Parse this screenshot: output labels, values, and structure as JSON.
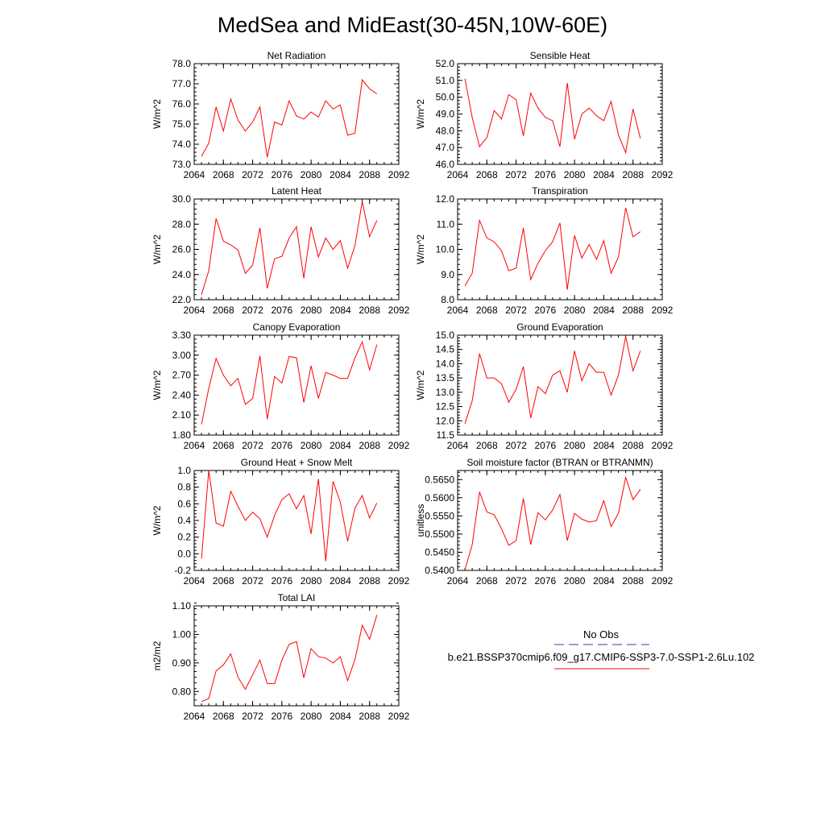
{
  "title": "MedSea and MidEast(30-45N,10W-60E)",
  "legend": {
    "obs_label": "No Obs",
    "case_label": "b.e21.BSSP370cmip6.f09_g17.CMIP6-SSP3-7.0-SSP1-2.6Lu.102",
    "obs_color": "#3a3aa8",
    "case_color": "#ff0000"
  },
  "x_values": [
    2065,
    2066,
    2067,
    2068,
    2069,
    2070,
    2071,
    2072,
    2073,
    2074,
    2075,
    2076,
    2077,
    2078,
    2079,
    2080,
    2081,
    2082,
    2083,
    2084,
    2085,
    2086,
    2087,
    2088,
    2089
  ],
  "chart_data": [
    {
      "type": "line",
      "title": "Net Radiation",
      "ylabel": "W/m^2",
      "xlim": [
        2064,
        2092
      ],
      "ylim": [
        73.0,
        78.0
      ],
      "xticks": [
        "2064",
        "2068",
        "2072",
        "2076",
        "2080",
        "2084",
        "2088",
        "2092"
      ],
      "yticks": [
        "73.0",
        "74.0",
        "75.0",
        "76.0",
        "77.0",
        "78.0"
      ],
      "yminor": 0.2,
      "series": [
        {
          "color": "#ff0000",
          "values": [
            73.4,
            74.05,
            75.85,
            74.65,
            76.25,
            75.2,
            74.65,
            75.1,
            75.85,
            73.35,
            75.1,
            74.95,
            76.15,
            75.4,
            75.25,
            75.6,
            75.35,
            76.15,
            75.75,
            75.95,
            74.45,
            74.55,
            77.2,
            76.75,
            76.5
          ]
        }
      ]
    },
    {
      "type": "line",
      "title": "Sensible Heat",
      "ylabel": "W/m^2",
      "xlim": [
        2064,
        2092
      ],
      "ylim": [
        46.0,
        52.0
      ],
      "xticks": [
        "2064",
        "2068",
        "2072",
        "2076",
        "2080",
        "2084",
        "2088",
        "2092"
      ],
      "yticks": [
        "46.0",
        "47.0",
        "48.0",
        "49.0",
        "50.0",
        "51.0",
        "52.0"
      ],
      "yminor": 0.2,
      "series": [
        {
          "color": "#ff0000",
          "values": [
            51.1,
            48.8,
            47.05,
            47.6,
            49.2,
            48.7,
            50.15,
            49.85,
            47.7,
            50.25,
            49.35,
            48.8,
            48.6,
            47.05,
            50.85,
            47.5,
            49.0,
            49.35,
            48.9,
            48.6,
            49.75,
            47.75,
            46.7,
            49.3,
            47.55
          ]
        }
      ]
    },
    {
      "type": "line",
      "title": "Latent Heat",
      "ylabel": "W/m^2",
      "xlim": [
        2064,
        2092
      ],
      "ylim": [
        22.0,
        30.0
      ],
      "xticks": [
        "2064",
        "2068",
        "2072",
        "2076",
        "2080",
        "2084",
        "2088",
        "2092"
      ],
      "yticks": [
        "22.0",
        "24.0",
        "26.0",
        "28.0",
        "30.0"
      ],
      "yminor": 0.4,
      "series": [
        {
          "color": "#ff0000",
          "values": [
            22.4,
            24.3,
            28.45,
            26.65,
            26.35,
            25.95,
            24.1,
            24.75,
            27.7,
            22.9,
            25.25,
            25.45,
            26.9,
            27.8,
            23.7,
            27.8,
            25.4,
            26.9,
            26.0,
            26.7,
            24.5,
            26.3,
            29.8,
            27.0,
            28.3
          ]
        }
      ]
    },
    {
      "type": "line",
      "title": "Transpiration",
      "ylabel": "W/m^2",
      "xlim": [
        2064,
        2092
      ],
      "ylim": [
        8.0,
        12.0
      ],
      "xticks": [
        "2064",
        "2068",
        "2072",
        "2076",
        "2080",
        "2084",
        "2088",
        "2092"
      ],
      "yticks": [
        "8.0",
        "9.0",
        "10.0",
        "11.0",
        "12.0"
      ],
      "yminor": 0.2,
      "series": [
        {
          "color": "#ff0000",
          "values": [
            8.55,
            9.05,
            11.15,
            10.45,
            10.3,
            9.95,
            9.15,
            9.25,
            10.85,
            8.8,
            9.45,
            9.95,
            10.3,
            11.05,
            8.4,
            10.55,
            9.65,
            10.2,
            9.6,
            10.35,
            9.05,
            9.7,
            11.65,
            10.5,
            10.7
          ]
        }
      ]
    },
    {
      "type": "line",
      "title": "Canopy Evaporation",
      "ylabel": "W/m^2",
      "xlim": [
        2064,
        2092
      ],
      "ylim": [
        1.8,
        3.3
      ],
      "xticks": [
        "2064",
        "2068",
        "2072",
        "2076",
        "2080",
        "2084",
        "2088",
        "2092"
      ],
      "yticks": [
        "1.80",
        "2.10",
        "2.40",
        "2.70",
        "3.00",
        "3.30"
      ],
      "yminor": 0.06,
      "series": [
        {
          "color": "#ff0000",
          "values": [
            1.96,
            2.5,
            2.95,
            2.7,
            2.54,
            2.65,
            2.26,
            2.35,
            2.99,
            2.04,
            2.68,
            2.58,
            2.98,
            2.96,
            2.29,
            2.84,
            2.35,
            2.74,
            2.7,
            2.65,
            2.65,
            2.96,
            3.2,
            2.78,
            3.16
          ]
        }
      ]
    },
    {
      "type": "line",
      "title": "Ground Evaporation",
      "ylabel": "W/m^2",
      "xlim": [
        2064,
        2092
      ],
      "ylim": [
        11.5,
        15.0
      ],
      "xticks": [
        "2064",
        "2068",
        "2072",
        "2076",
        "2080",
        "2084",
        "2088",
        "2092"
      ],
      "yticks": [
        "11.5",
        "12.0",
        "12.5",
        "13.0",
        "13.5",
        "14.0",
        "14.5",
        "15.0"
      ],
      "yminor": 0.1,
      "series": [
        {
          "color": "#ff0000",
          "values": [
            11.9,
            12.7,
            14.35,
            13.5,
            13.5,
            13.3,
            12.65,
            13.1,
            13.9,
            12.1,
            13.2,
            12.95,
            13.6,
            13.75,
            13.0,
            14.45,
            13.4,
            14.0,
            13.7,
            13.7,
            12.9,
            13.6,
            14.95,
            13.75,
            14.45
          ]
        }
      ]
    },
    {
      "type": "line",
      "title": "Ground Heat + Snow Melt",
      "ylabel": "W/m^2",
      "xlim": [
        2064,
        2092
      ],
      "ylim": [
        -0.2,
        1.0
      ],
      "xticks": [
        "2064",
        "2068",
        "2072",
        "2076",
        "2080",
        "2084",
        "2088",
        "2092"
      ],
      "yticks": [
        "-0.2",
        "0.0",
        "0.2",
        "0.4",
        "0.6",
        "0.8",
        "1.0"
      ],
      "yminor": 0.04,
      "series": [
        {
          "color": "#ff0000",
          "values": [
            -0.06,
            1.0,
            0.37,
            0.33,
            0.75,
            0.57,
            0.4,
            0.5,
            0.42,
            0.2,
            0.46,
            0.65,
            0.72,
            0.54,
            0.7,
            0.24,
            0.9,
            -0.09,
            0.87,
            0.62,
            0.15,
            0.55,
            0.7,
            0.43,
            0.61
          ]
        }
      ]
    },
    {
      "type": "line",
      "title": "Soil moisture factor (BTRAN or BTRANMN)",
      "ylabel": "unitless",
      "xlim": [
        2064,
        2092
      ],
      "ylim": [
        0.54,
        0.5675
      ],
      "xticks": [
        "2064",
        "2068",
        "2072",
        "2076",
        "2080",
        "2084",
        "2088",
        "2092"
      ],
      "yticks": [
        "0.5400",
        "0.5450",
        "0.5500",
        "0.5550",
        "0.5600",
        "0.5650"
      ],
      "yminor": 0.001,
      "series": [
        {
          "color": "#ff0000",
          "values": [
            0.5402,
            0.5471,
            0.5616,
            0.5561,
            0.5553,
            0.5515,
            0.5469,
            0.5482,
            0.5598,
            0.5471,
            0.5559,
            0.5539,
            0.5566,
            0.5609,
            0.5482,
            0.5557,
            0.5541,
            0.5533,
            0.5537,
            0.5592,
            0.5521,
            0.5557,
            0.5656,
            0.5595,
            0.5623
          ]
        }
      ]
    },
    {
      "type": "line",
      "title": "Total LAI",
      "ylabel": "m2/m2",
      "xlim": [
        2064,
        2092
      ],
      "ylim": [
        0.75,
        1.1
      ],
      "xticks": [
        "2064",
        "2068",
        "2072",
        "2076",
        "2080",
        "2084",
        "2088",
        "2092"
      ],
      "yticks": [
        "0.80",
        "0.90",
        "1.00",
        "1.10"
      ],
      "yminor": 0.02,
      "series": [
        {
          "color": "#ff0000",
          "values": [
            0.765,
            0.775,
            0.872,
            0.893,
            0.932,
            0.85,
            0.808,
            0.858,
            0.91,
            0.828,
            0.827,
            0.91,
            0.965,
            0.975,
            0.848,
            0.95,
            0.922,
            0.917,
            0.9,
            0.922,
            0.838,
            0.912,
            1.032,
            0.983,
            1.068
          ]
        }
      ]
    }
  ]
}
